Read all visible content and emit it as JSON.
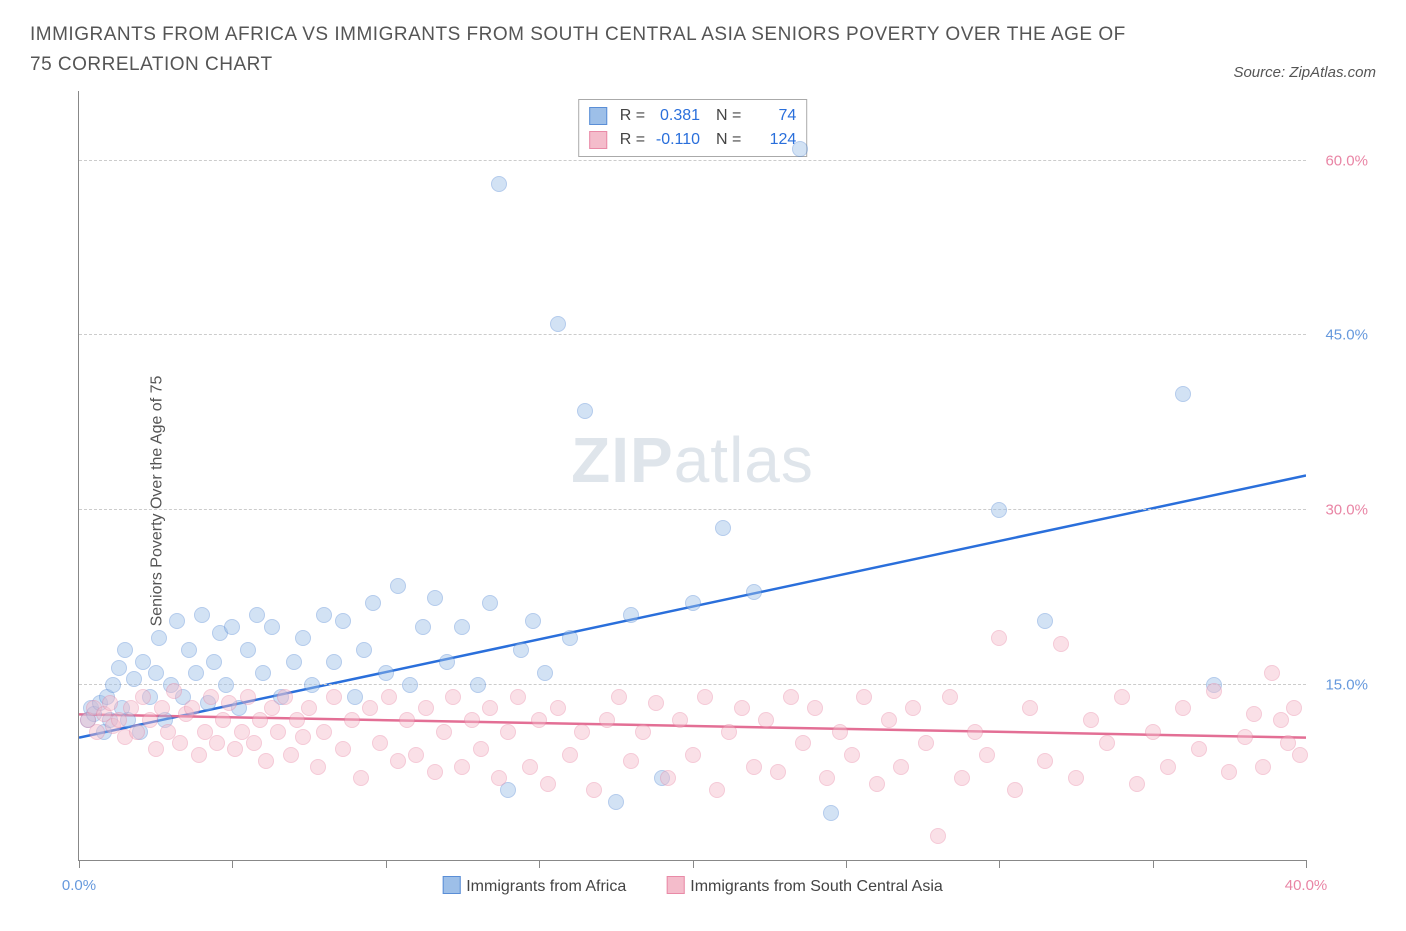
{
  "title": "IMMIGRANTS FROM AFRICA VS IMMIGRANTS FROM SOUTH CENTRAL ASIA SENIORS POVERTY OVER THE AGE OF 75 CORRELATION CHART",
  "source": "Source: ZipAtlas.com",
  "ylabel": "Seniors Poverty Over the Age of 75",
  "watermark_a": "ZIP",
  "watermark_b": "atlas",
  "chart": {
    "type": "scatter",
    "background_color": "#ffffff",
    "grid_color": "#cccccc",
    "ylim": [
      0,
      66
    ],
    "yticks": [
      15,
      30,
      45,
      60
    ],
    "ytick_labels": [
      "15.0%",
      "30.0%",
      "45.0%",
      "60.0%"
    ],
    "ytick_color_a": "#6699dd",
    "ytick_color_b": "#e985a5",
    "xlim": [
      0,
      40
    ],
    "xticks": [
      0,
      5,
      10,
      15,
      20,
      25,
      30,
      35,
      40
    ],
    "xaxis_left_label": "0.0%",
    "xaxis_right_label": "40.0%",
    "marker_radius": 8,
    "marker_opacity": 0.45,
    "series": [
      {
        "name": "Immigrants from Africa",
        "color_stroke": "#5a8ed6",
        "color_fill": "#9dbfe8",
        "trendline_color": "#2a6fdb",
        "trendline": {
          "x1": 0,
          "y1": 10.5,
          "x2": 40,
          "y2": 33
        },
        "R": "0.381",
        "N": "74",
        "points": [
          [
            0.3,
            12
          ],
          [
            0.4,
            13
          ],
          [
            0.5,
            12.5
          ],
          [
            0.7,
            13.5
          ],
          [
            0.8,
            11
          ],
          [
            0.9,
            14
          ],
          [
            1.0,
            12
          ],
          [
            1.1,
            15
          ],
          [
            1.3,
            16.5
          ],
          [
            1.4,
            13
          ],
          [
            1.5,
            18
          ],
          [
            1.6,
            12
          ],
          [
            1.8,
            15.5
          ],
          [
            2.0,
            11
          ],
          [
            2.1,
            17
          ],
          [
            2.3,
            14
          ],
          [
            2.5,
            16
          ],
          [
            2.6,
            19
          ],
          [
            2.8,
            12
          ],
          [
            3.0,
            15
          ],
          [
            3.2,
            20.5
          ],
          [
            3.4,
            14
          ],
          [
            3.6,
            18
          ],
          [
            3.8,
            16
          ],
          [
            4.0,
            21
          ],
          [
            4.2,
            13.5
          ],
          [
            4.4,
            17
          ],
          [
            4.6,
            19.5
          ],
          [
            4.8,
            15
          ],
          [
            5.0,
            20
          ],
          [
            5.2,
            13
          ],
          [
            5.5,
            18
          ],
          [
            5.8,
            21
          ],
          [
            6.0,
            16
          ],
          [
            6.3,
            20
          ],
          [
            6.6,
            14
          ],
          [
            7.0,
            17
          ],
          [
            7.3,
            19
          ],
          [
            7.6,
            15
          ],
          [
            8.0,
            21
          ],
          [
            8.3,
            17
          ],
          [
            8.6,
            20.5
          ],
          [
            9.0,
            14
          ],
          [
            9.3,
            18
          ],
          [
            9.6,
            22
          ],
          [
            10.0,
            16
          ],
          [
            10.4,
            23.5
          ],
          [
            10.8,
            15
          ],
          [
            11.2,
            20
          ],
          [
            11.6,
            22.5
          ],
          [
            12.0,
            17
          ],
          [
            12.5,
            20
          ],
          [
            13.0,
            15
          ],
          [
            13.4,
            22
          ],
          [
            13.7,
            58
          ],
          [
            14.0,
            6
          ],
          [
            14.4,
            18
          ],
          [
            14.8,
            20.5
          ],
          [
            15.2,
            16
          ],
          [
            15.6,
            46
          ],
          [
            16.0,
            19
          ],
          [
            16.5,
            38.5
          ],
          [
            17.5,
            5
          ],
          [
            18.0,
            21
          ],
          [
            19.0,
            7
          ],
          [
            20.0,
            22
          ],
          [
            21.0,
            28.5
          ],
          [
            22.0,
            23
          ],
          [
            23.5,
            61
          ],
          [
            24.5,
            4
          ],
          [
            30.0,
            30
          ],
          [
            31.5,
            20.5
          ],
          [
            36.0,
            40
          ],
          [
            37.0,
            15
          ]
        ]
      },
      {
        "name": "Immigrants from South Central Asia",
        "color_stroke": "#e98aa7",
        "color_fill": "#f4bccb",
        "trendline_color": "#e36f95",
        "trendline": {
          "x1": 0,
          "y1": 12.5,
          "x2": 40,
          "y2": 10.5
        },
        "R": "-0.110",
        "N": "124",
        "points": [
          [
            0.3,
            12
          ],
          [
            0.5,
            13
          ],
          [
            0.6,
            11
          ],
          [
            0.8,
            12.5
          ],
          [
            1.0,
            13.5
          ],
          [
            1.1,
            11.5
          ],
          [
            1.3,
            12
          ],
          [
            1.5,
            10.5
          ],
          [
            1.7,
            13
          ],
          [
            1.9,
            11
          ],
          [
            2.1,
            14
          ],
          [
            2.3,
            12
          ],
          [
            2.5,
            9.5
          ],
          [
            2.7,
            13
          ],
          [
            2.9,
            11
          ],
          [
            3.1,
            14.5
          ],
          [
            3.3,
            10
          ],
          [
            3.5,
            12.5
          ],
          [
            3.7,
            13
          ],
          [
            3.9,
            9
          ],
          [
            4.1,
            11
          ],
          [
            4.3,
            14
          ],
          [
            4.5,
            10
          ],
          [
            4.7,
            12
          ],
          [
            4.9,
            13.5
          ],
          [
            5.1,
            9.5
          ],
          [
            5.3,
            11
          ],
          [
            5.5,
            14
          ],
          [
            5.7,
            10
          ],
          [
            5.9,
            12
          ],
          [
            6.1,
            8.5
          ],
          [
            6.3,
            13
          ],
          [
            6.5,
            11
          ],
          [
            6.7,
            14
          ],
          [
            6.9,
            9
          ],
          [
            7.1,
            12
          ],
          [
            7.3,
            10.5
          ],
          [
            7.5,
            13
          ],
          [
            7.8,
            8
          ],
          [
            8.0,
            11
          ],
          [
            8.3,
            14
          ],
          [
            8.6,
            9.5
          ],
          [
            8.9,
            12
          ],
          [
            9.2,
            7
          ],
          [
            9.5,
            13
          ],
          [
            9.8,
            10
          ],
          [
            10.1,
            14
          ],
          [
            10.4,
            8.5
          ],
          [
            10.7,
            12
          ],
          [
            11.0,
            9
          ],
          [
            11.3,
            13
          ],
          [
            11.6,
            7.5
          ],
          [
            11.9,
            11
          ],
          [
            12.2,
            14
          ],
          [
            12.5,
            8
          ],
          [
            12.8,
            12
          ],
          [
            13.1,
            9.5
          ],
          [
            13.4,
            13
          ],
          [
            13.7,
            7
          ],
          [
            14.0,
            11
          ],
          [
            14.3,
            14
          ],
          [
            14.7,
            8
          ],
          [
            15.0,
            12
          ],
          [
            15.3,
            6.5
          ],
          [
            15.6,
            13
          ],
          [
            16.0,
            9
          ],
          [
            16.4,
            11
          ],
          [
            16.8,
            6
          ],
          [
            17.2,
            12
          ],
          [
            17.6,
            14
          ],
          [
            18.0,
            8.5
          ],
          [
            18.4,
            11
          ],
          [
            18.8,
            13.5
          ],
          [
            19.2,
            7
          ],
          [
            19.6,
            12
          ],
          [
            20.0,
            9
          ],
          [
            20.4,
            14
          ],
          [
            20.8,
            6
          ],
          [
            21.2,
            11
          ],
          [
            21.6,
            13
          ],
          [
            22.0,
            8
          ],
          [
            22.4,
            12
          ],
          [
            22.8,
            7.5
          ],
          [
            23.2,
            14
          ],
          [
            23.6,
            10
          ],
          [
            24.0,
            13
          ],
          [
            24.4,
            7
          ],
          [
            24.8,
            11
          ],
          [
            25.2,
            9
          ],
          [
            25.6,
            14
          ],
          [
            26.0,
            6.5
          ],
          [
            26.4,
            12
          ],
          [
            26.8,
            8
          ],
          [
            27.2,
            13
          ],
          [
            27.6,
            10
          ],
          [
            28.0,
            2
          ],
          [
            28.4,
            14
          ],
          [
            28.8,
            7
          ],
          [
            29.2,
            11
          ],
          [
            29.6,
            9
          ],
          [
            30.0,
            19
          ],
          [
            30.5,
            6
          ],
          [
            31.0,
            13
          ],
          [
            31.5,
            8.5
          ],
          [
            32.0,
            18.5
          ],
          [
            32.5,
            7
          ],
          [
            33.0,
            12
          ],
          [
            33.5,
            10
          ],
          [
            34.0,
            14
          ],
          [
            34.5,
            6.5
          ],
          [
            35.0,
            11
          ],
          [
            35.5,
            8
          ],
          [
            36.0,
            13
          ],
          [
            36.5,
            9.5
          ],
          [
            37.0,
            14.5
          ],
          [
            37.5,
            7.5
          ],
          [
            38.0,
            10.5
          ],
          [
            38.3,
            12.5
          ],
          [
            38.6,
            8
          ],
          [
            38.9,
            16
          ],
          [
            39.2,
            12
          ],
          [
            39.4,
            10
          ],
          [
            39.6,
            13
          ],
          [
            39.8,
            9
          ]
        ]
      }
    ]
  }
}
